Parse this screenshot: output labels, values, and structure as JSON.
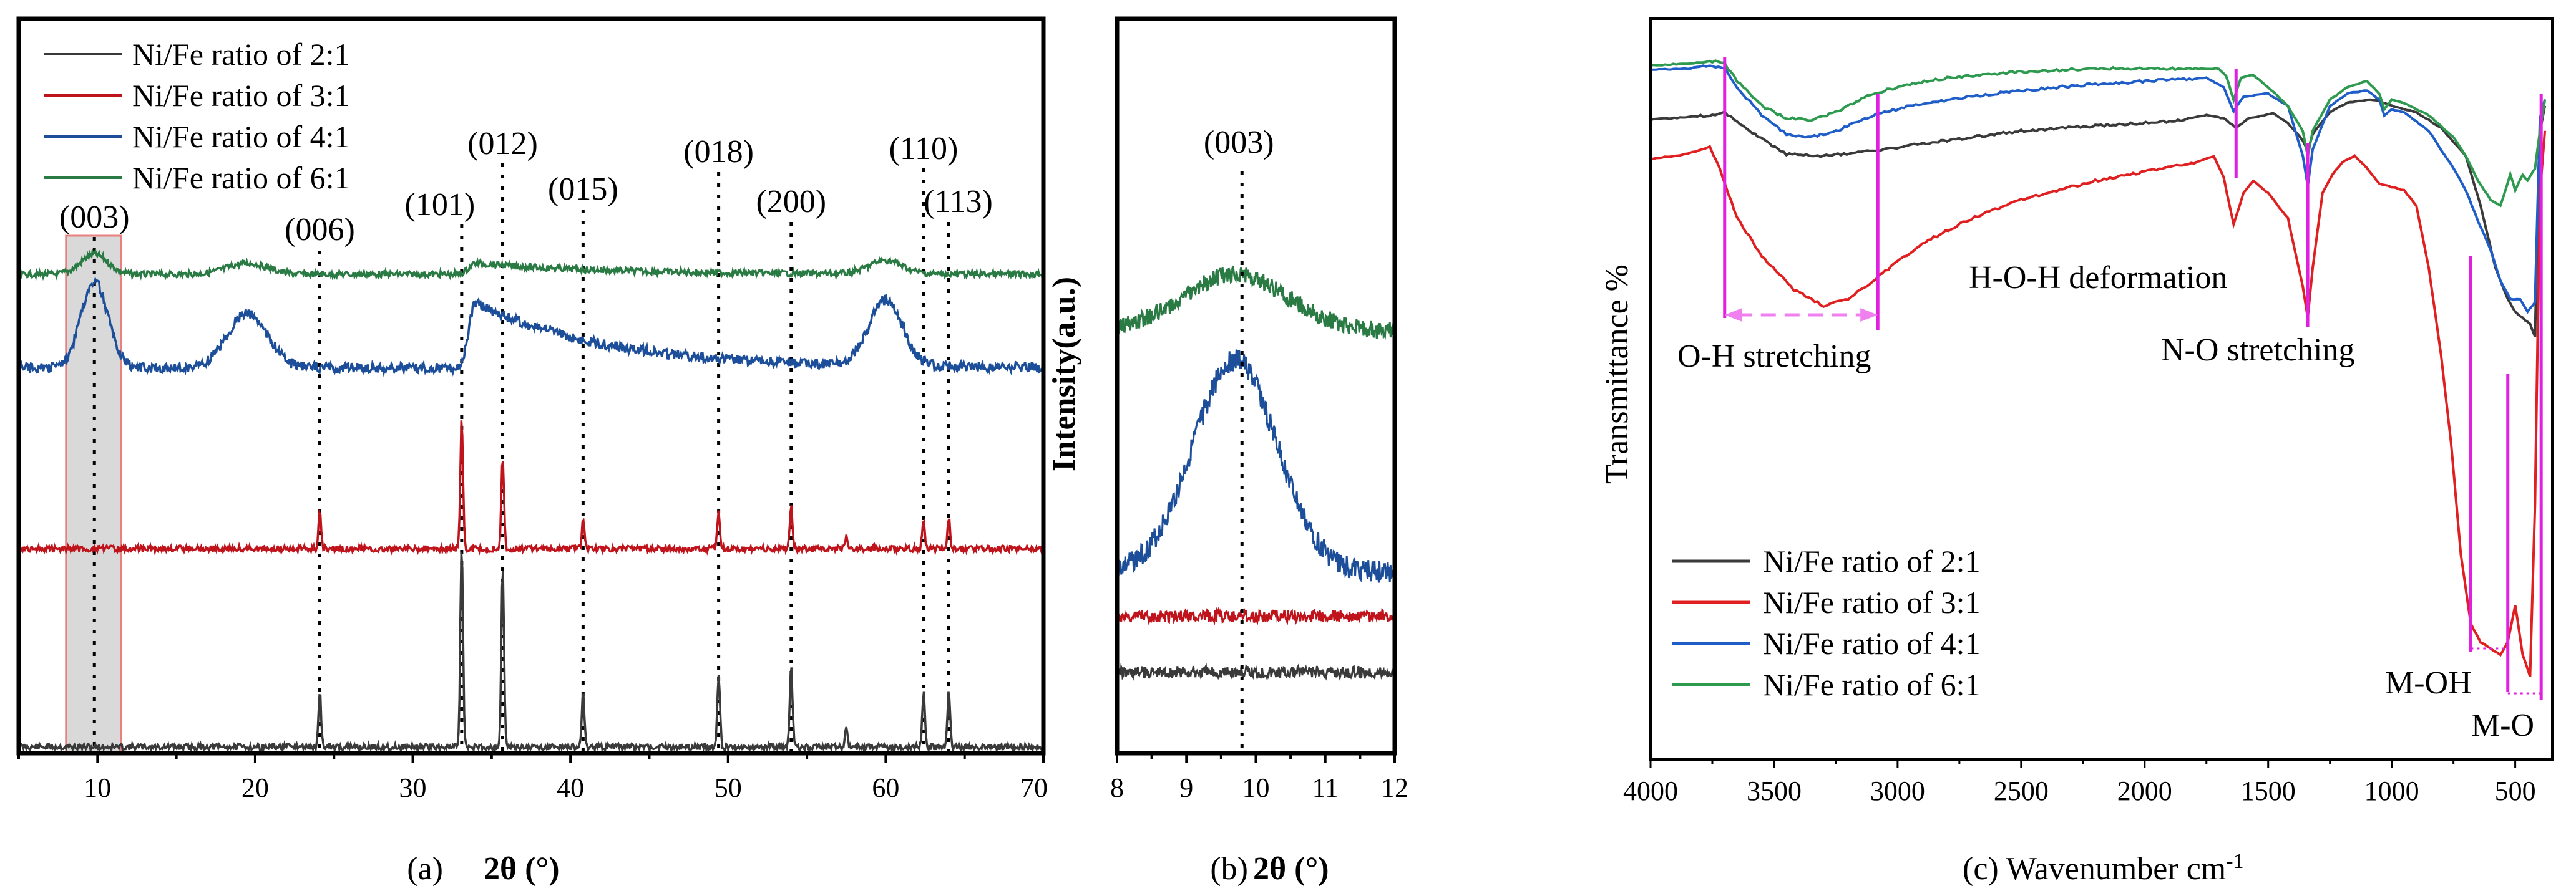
{
  "chart_data": [
    {
      "type": "line",
      "panel_caption": "(a)",
      "xlabel": "2θ (°)",
      "xlim": [
        5,
        70
      ],
      "xticks": [
        10,
        20,
        30,
        40,
        50,
        60,
        70
      ],
      "highlight_region": [
        8,
        11.5
      ],
      "legend": [
        "Ni/Fe ratio of 2:1",
        "Ni/Fe ratio of 3:1",
        "Ni/Fe ratio of 4:1",
        "Ni/Fe ratio of 6:1"
      ],
      "peaks": [
        {
          "label": "(003)",
          "x": 9.8
        },
        {
          "label": "(006)",
          "x": 24.1
        },
        {
          "label": "(101)",
          "x": 33.1
        },
        {
          "label": "(012)",
          "x": 35.7
        },
        {
          "label": "(015)",
          "x": 40.8
        },
        {
          "label": "(018)",
          "x": 49.4
        },
        {
          "label": "(200)",
          "x": 54.0
        },
        {
          "label": "(110)",
          "x": 62.4
        },
        {
          "label": "(113)",
          "x": 64.0
        }
      ],
      "series": [
        {
          "name": "Ni/Fe ratio of 2:1",
          "offset": 0,
          "peaks": [
            [
              24.1,
              0.3
            ],
            [
              33.1,
              1.1
            ],
            [
              35.7,
              1.0
            ],
            [
              40.8,
              0.3
            ],
            [
              49.4,
              0.4
            ],
            [
              54.0,
              0.45
            ],
            [
              57.5,
              0.1
            ],
            [
              62.4,
              0.3
            ],
            [
              64.0,
              0.3
            ]
          ]
        },
        {
          "name": "Ni/Fe ratio of 3:1",
          "offset": 1,
          "peaks": [
            [
              24.1,
              0.25
            ],
            [
              33.1,
              0.9
            ],
            [
              35.7,
              0.65
            ],
            [
              40.8,
              0.2
            ],
            [
              49.4,
              0.25
            ],
            [
              54.0,
              0.3
            ],
            [
              57.5,
              0.08
            ],
            [
              62.4,
              0.2
            ],
            [
              64.0,
              0.22
            ]
          ]
        },
        {
          "name": "Ni/Fe ratio of 4:1",
          "offset": 2,
          "broad_peaks": [
            [
              9.8,
              0.4,
              1.2
            ],
            [
              19.5,
              0.25,
              1.8
            ],
            [
              34.0,
              0.3,
              1.2
            ],
            [
              60.0,
              0.3,
              1.5
            ]
          ]
        },
        {
          "name": "Ni/Fe ratio of 6:1",
          "offset": 3,
          "broad_peaks": [
            [
              9.8,
              0.18,
              1.2
            ],
            [
              19.5,
              0.1,
              1.8
            ],
            [
              34.0,
              0.1,
              1.2
            ],
            [
              60.0,
              0.12,
              1.5
            ]
          ]
        }
      ]
    },
    {
      "type": "line",
      "panel_caption": "(b)",
      "xlabel": "2θ (°)",
      "ylabel": "Intensity(a.u.)",
      "xlim": [
        8,
        12
      ],
      "xticks": [
        8,
        9,
        10,
        11,
        12
      ],
      "peak": {
        "label": "(003)",
        "x": 9.8
      },
      "series": [
        {
          "name": "Ni/Fe ratio of 2:1",
          "peak_height": 0
        },
        {
          "name": "Ni/Fe ratio of 3:1",
          "peak_height": 0
        },
        {
          "name": "Ni/Fe ratio of 4:1",
          "peak_height": 1.0
        },
        {
          "name": "Ni/Fe ratio of 6:1",
          "peak_height": 0.45
        }
      ]
    },
    {
      "type": "line",
      "panel_caption": "(c)",
      "xlabel": "Wavenumber cm-1",
      "ylabel": "Transmittance %",
      "xlim": [
        4000,
        350
      ],
      "xticks": [
        4000,
        3500,
        3000,
        2500,
        2000,
        1500,
        1000,
        500
      ],
      "legend": [
        "Ni/Fe ratio of 2:1",
        "Ni/Fe ratio of 3:1",
        "Ni/Fe ratio of 4:1",
        "Ni/Fe ratio of 6:1"
      ],
      "annotations": [
        {
          "text": "O-H stretching",
          "x_range": [
            3700,
            3080
          ]
        },
        {
          "text": "H-O-H deformation",
          "x": 1630
        },
        {
          "text": "N-O stretching",
          "x": 1340
        },
        {
          "text": "M-OH",
          "x": 680
        },
        {
          "text": "M-O",
          "x": 530
        }
      ]
    }
  ],
  "colors": {
    "s21": "#3a3a3a",
    "s31": "#e02020",
    "s41": "#1f5ec8",
    "s61": "#2e9a4f",
    "s31_xrd": "#c0141c",
    "s41_xrd": "#1c4e9a",
    "s61_xrd": "#2a7a44",
    "magenta": "#e020e0"
  }
}
